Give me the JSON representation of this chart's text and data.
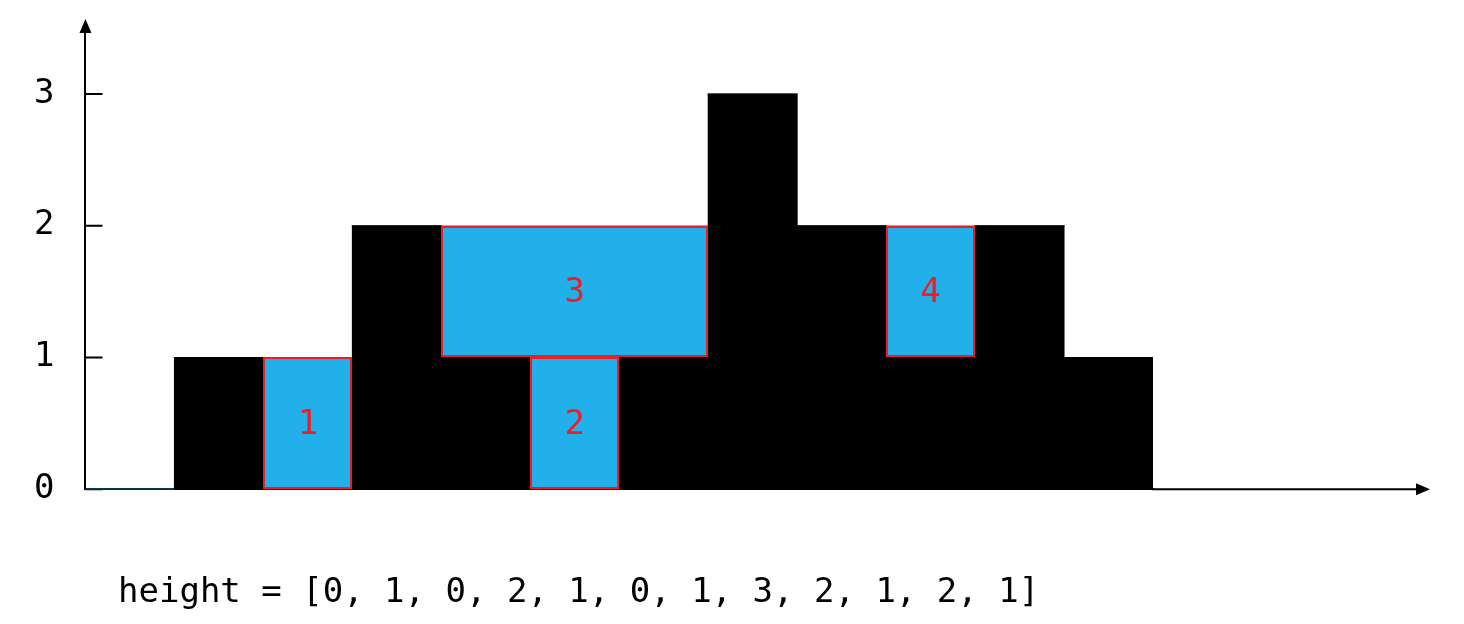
{
  "chart_data": {
    "type": "bar",
    "stacked": true,
    "categories": [
      null,
      null,
      null,
      null,
      null,
      null,
      null,
      null,
      null,
      null,
      null,
      null
    ],
    "series": [
      {
        "color": "#000000",
        "values": [
          0,
          1,
          0,
          2,
          1,
          0,
          1,
          3,
          2,
          1,
          2,
          1
        ]
      },
      {
        "color": "#22b0ea",
        "values": [
          0,
          0,
          1,
          0,
          0,
          1,
          0,
          0,
          0,
          0,
          0,
          0
        ]
      },
      {
        "color": "#22b0ea",
        "values": [
          0,
          0,
          0,
          0,
          1,
          1,
          1,
          0,
          0,
          1,
          0,
          0
        ]
      }
    ],
    "ylim": [
      0,
      3.5
    ],
    "yticks": [
      0,
      1,
      2,
      3
    ],
    "grid": false,
    "legend": false,
    "annotations": [
      "1",
      "2",
      "3",
      "4",
      "height = [0, 1, 0, 2, 1, 0, 1, 3, 2, 1, 2, 1]"
    ]
  }
}
